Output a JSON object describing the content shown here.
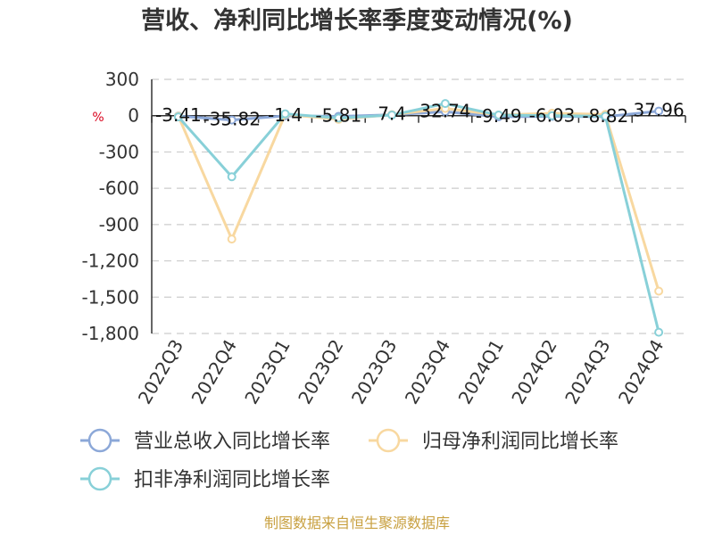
{
  "chart_data": {
    "type": "line",
    "title": "营收、净利同比增长率季度变动情况(%)",
    "ylabel": "%",
    "ylim": [
      -1800,
      300
    ],
    "yticks": [
      "300",
      "0",
      "-300",
      "-600",
      "-900",
      "-1,200",
      "-1,500",
      "-1,800"
    ],
    "ytick_values": [
      300,
      0,
      -300,
      -600,
      -900,
      -1200,
      -1500,
      -1800
    ],
    "categories": [
      "2022Q3",
      "2022Q4",
      "2023Q1",
      "2023Q2",
      "2023Q3",
      "2023Q4",
      "2024Q1",
      "2024Q2",
      "2024Q3",
      "2024Q4"
    ],
    "grid": true,
    "legend_position": "bottom-left",
    "series": [
      {
        "name": "营业总收入同比增长率",
        "color": "#8ca8d8",
        "values": [
          -3.41,
          -35.82,
          -1.4,
          -5.81,
          7.4,
          32.74,
          -9.49,
          -6.03,
          -8.82,
          37.96
        ],
        "labels": [
          "-3.41",
          "-35.82",
          "-1.4",
          "-5.81",
          "7.4",
          "32.74",
          "-9.49",
          "-6.03",
          "-8.82",
          "37.96"
        ]
      },
      {
        "name": "归母净利润同比增长率",
        "color": "#f8d8a0",
        "values": [
          -5,
          -1020,
          10,
          -30,
          8,
          60,
          5,
          20,
          10,
          -1450
        ]
      },
      {
        "name": "扣非净利润同比增长率",
        "color": "#88d0d8",
        "values": [
          -10,
          -505,
          15,
          -20,
          5,
          100,
          5,
          0,
          -5,
          -1790
        ]
      }
    ]
  },
  "source_text": "制图数据来自恒生聚源数据库"
}
